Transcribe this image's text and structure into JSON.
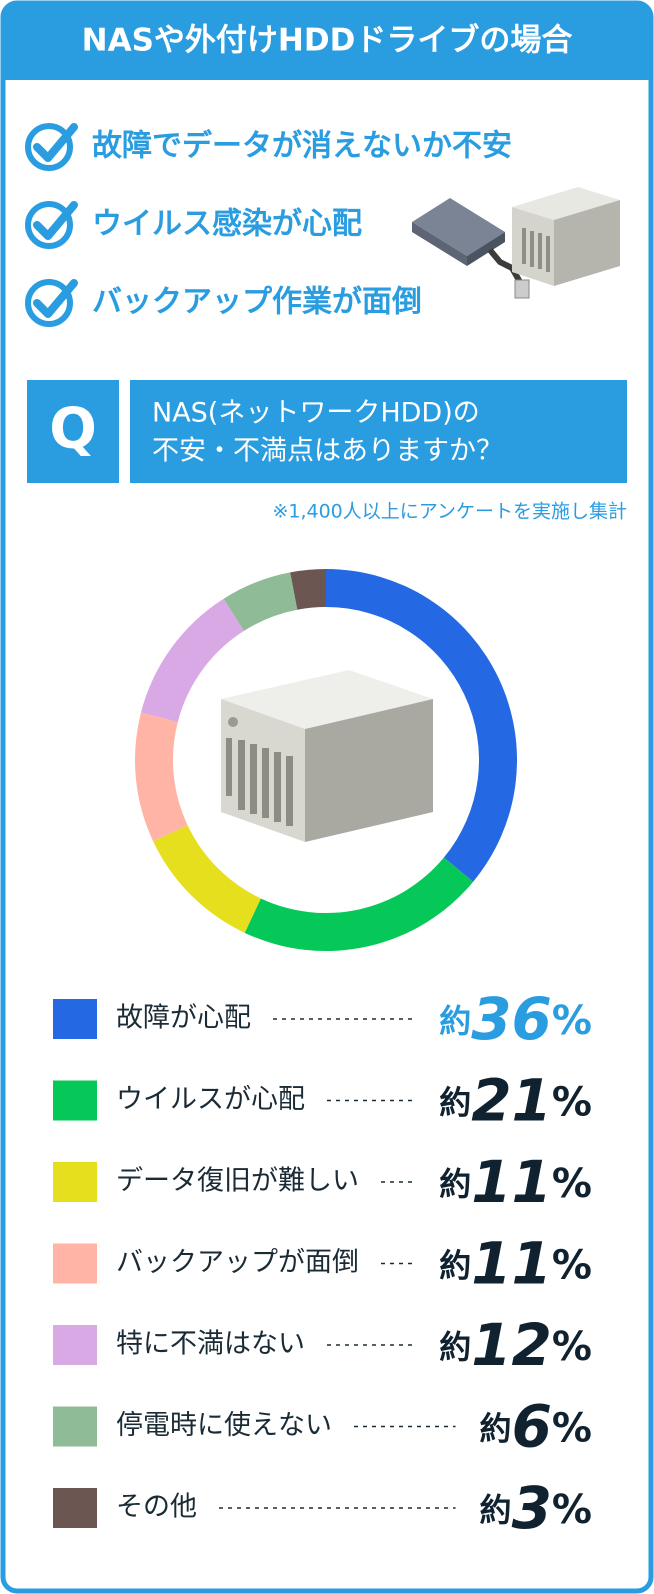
{
  "header": {
    "title": "NASや外付けHDDドライブの場合"
  },
  "concerns": [
    "故障でデータが消えないか不安",
    "ウイルス感染が心配",
    "バックアップ作業が面倒"
  ],
  "question": {
    "mark": "Q",
    "lines": [
      "NAS(ネットワークHDD)の",
      "不安・不満点はありますか？"
    ]
  },
  "note": "※1,400人以上にアンケートを実施し集計",
  "chart_data": {
    "type": "pie",
    "donut": true,
    "categories": [
      "故障が心配",
      "ウイルスが心配",
      "データ復旧が難しい",
      "バックアップが面倒",
      "特に不満はない",
      "停電時に使えない",
      "その他"
    ],
    "values": [
      36,
      21,
      11,
      11,
      12,
      6,
      3
    ],
    "value_labels": [
      "約36%",
      "約21%",
      "約11%",
      "約11%",
      "約12%",
      "約6%",
      "約3%"
    ],
    "colors": [
      "#2468e4",
      "#05c859",
      "#e6df1e",
      "#ffb4a6",
      "#d8a9e4",
      "#8fbb96",
      "#6b5651"
    ],
    "value_label_colors": [
      "#2a9de1",
      "#10222f",
      "#10222f",
      "#10222f",
      "#10222f",
      "#10222f",
      "#10222f"
    ]
  }
}
